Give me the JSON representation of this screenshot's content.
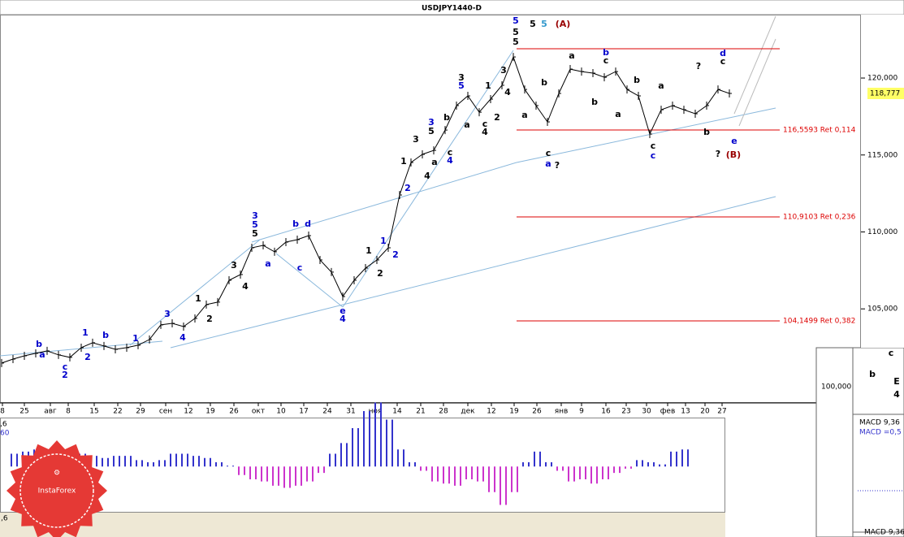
{
  "chart_data": {
    "type": "line",
    "title": "USDJPY1440-D",
    "color": "#000000",
    "ylim": [
      98.94,
      124.12
    ],
    "yticks": [
      {
        "value": 120,
        "label": "120,000"
      },
      {
        "value": 115,
        "label": "115,000"
      },
      {
        "value": 110,
        "label": "110,000"
      },
      {
        "value": 105,
        "label": "105,000"
      }
    ],
    "current_price": "118,777",
    "values": [
      101.48,
      101.74,
      101.95,
      102.11,
      102.27,
      102.01,
      101.85,
      102.48,
      102.8,
      102.59,
      102.37,
      102.48,
      102.64,
      103.01,
      103.96,
      104.06,
      103.85,
      104.38,
      105.28,
      105.44,
      106.86,
      107.23,
      108.97,
      109.13,
      108.71,
      109.34,
      109.5,
      109.76,
      108.18,
      107.39,
      105.8,
      106.86,
      107.65,
      108.18,
      108.97,
      112.4,
      114.51,
      115.04,
      115.3,
      116.62,
      118.21,
      118.84,
      117.78,
      118.63,
      119.53,
      121.37,
      119.26,
      118.21,
      117.15,
      119.0,
      120.58,
      120.42,
      120.32,
      120.05,
      120.42,
      119.26,
      118.84,
      116.36,
      117.94,
      118.21,
      117.94,
      117.68,
      118.21,
      119.26,
      119.0
    ],
    "date_labels": [
      "8",
      "25",
      "авг",
      "8",
      "15",
      "22",
      "29",
      "сен",
      "12",
      "19",
      "26",
      "окт",
      "10",
      "17",
      "24",
      "31",
      "ноя",
      "14",
      "21",
      "28",
      "дек",
      "12",
      "19",
      "26",
      "янв",
      "9",
      "16",
      "23",
      "30",
      "фев",
      "13",
      "20",
      "27"
    ],
    "fib_levels": [
      "116,5593 Ret 0,114",
      "110,9103 Ret 0,236",
      "104,1499 Ret 0,382"
    ],
    "wave_labels": [
      "b",
      "a",
      "c",
      "2",
      "1",
      "2",
      "b",
      "1",
      "3",
      "4",
      "1",
      "2",
      "3",
      "4",
      "3",
      "5",
      "5",
      "a",
      "b",
      "d",
      "c",
      "e",
      "4",
      "1",
      "1",
      "2",
      "2",
      "1",
      "2",
      "3",
      "4",
      "a",
      "3",
      "5",
      "c",
      "4",
      "b",
      "3",
      "5",
      "a",
      "1",
      "2",
      "c",
      "4",
      "3",
      "4",
      "5",
      "5",
      "5",
      "5",
      "5",
      "(A)",
      "a",
      "b",
      "c",
      "a",
      "?",
      "a",
      "b",
      "b",
      "c",
      "a",
      "b",
      "a",
      "c",
      "c",
      "?",
      "b",
      "d",
      "c",
      "e",
      "?",
      "(B)"
    ],
    "macd": {
      "ylim": [
        -1.1,
        1.7
      ],
      "values": [
        0.3,
        0.35,
        0.4,
        0.4,
        0.3,
        0.35,
        0.3,
        0.25,
        0.2,
        0.25,
        0.25,
        0.15,
        0.1,
        0.15,
        0.3,
        0.3,
        0.25,
        0.2,
        0.1,
        0.02,
        -0.2,
        -0.3,
        -0.35,
        -0.45,
        -0.5,
        -0.45,
        -0.35,
        -0.15,
        0.3,
        0.55,
        0.9,
        1.3,
        1.5,
        1.1,
        0.4,
        0.1,
        -0.1,
        -0.35,
        -0.4,
        -0.45,
        -0.3,
        -0.35,
        -0.6,
        -0.9,
        -0.6,
        0.1,
        0.35,
        0.1,
        -0.1,
        -0.35,
        -0.3,
        -0.4,
        -0.3,
        -0.15,
        -0.05,
        0.15,
        0.1,
        0.05,
        0.35,
        0.4
      ],
      "positive_color": "#3333cc",
      "negative_color": "#cc33cc",
      "left_labels": [
        ",6",
        "60"
      ],
      "bottom_label": ",6"
    },
    "inset": {
      "price_label": "100,000",
      "wave_labels": [
        "c",
        "b",
        "E",
        "4"
      ],
      "macd_labels": [
        "MACD 9,36",
        "MACD =0,5"
      ],
      "bottom_label": "MACD 9,36"
    },
    "logo": "InstaForex"
  }
}
